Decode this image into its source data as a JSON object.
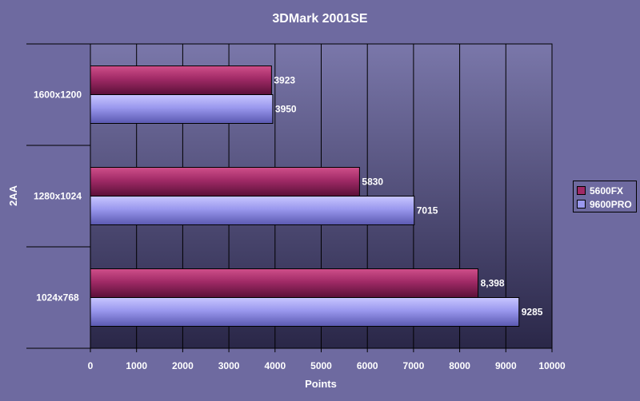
{
  "chart_data": {
    "type": "bar",
    "orientation": "horizontal",
    "title": "3DMark 2001SE",
    "xlabel": "Points",
    "ylabel": "2AA",
    "categories": [
      "1600x1200",
      "1280x1024",
      "1024x768"
    ],
    "series": [
      {
        "name": "5600FX",
        "values": [
          3923,
          5830,
          8398
        ],
        "labels": [
          "3923",
          "5830",
          "8,398"
        ],
        "color": "#a02a66"
      },
      {
        "name": "9600PRO",
        "values": [
          3950,
          7015,
          9285
        ],
        "labels": [
          "3950",
          "7015",
          "9285"
        ],
        "color": "#9a98ee"
      }
    ],
    "xlim": [
      0,
      10000
    ],
    "xticks": [
      0,
      1000,
      2000,
      3000,
      4000,
      5000,
      6000,
      7000,
      8000,
      9000,
      10000
    ],
    "grid": true,
    "legend_position": "right",
    "colors": {
      "background": "#6e6aa0",
      "plot_top": "#7a77aa",
      "plot_bottom": "#2a2748"
    }
  }
}
